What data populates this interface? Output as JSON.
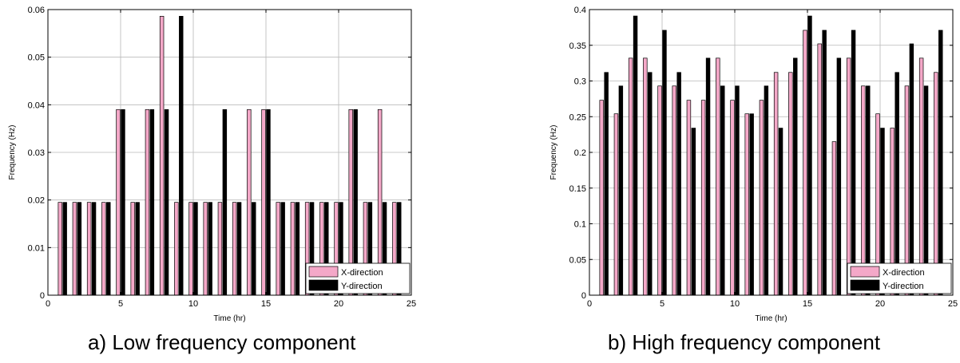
{
  "figure": {
    "captions": [
      "a)  Low frequency component",
      "b)  High frequency component"
    ]
  },
  "chart_data": [
    {
      "type": "bar",
      "title": "",
      "xlabel": "Time (hr)",
      "ylabel": "Frequency (Hz)",
      "xlim": [
        0,
        25
      ],
      "ylim": [
        0,
        0.06
      ],
      "xticks": [
        0,
        5,
        10,
        15,
        20,
        25
      ],
      "yticks": [
        0,
        0.01,
        0.02,
        0.03,
        0.04,
        0.05,
        0.06
      ],
      "ytick_labels": [
        "0",
        "0.01",
        "0.02",
        "0.03",
        "0.04",
        "0.05",
        "0.06"
      ],
      "xtick_labels": [
        "0",
        "5",
        "10",
        "15",
        "20",
        "25"
      ],
      "grid": true,
      "legend_position": "bottom-right",
      "x": [
        1,
        2,
        3,
        4,
        5,
        6,
        7,
        8,
        9,
        10,
        11,
        12,
        13,
        14,
        15,
        16,
        17,
        18,
        19,
        20,
        21,
        22,
        23,
        24
      ],
      "series": [
        {
          "name": "X-direction",
          "color": "#f4a8c8",
          "values": [
            0.0195,
            0.0195,
            0.0195,
            0.0195,
            0.039,
            0.0195,
            0.039,
            0.0586,
            0.0195,
            0.0195,
            0.0195,
            0.0195,
            0.0195,
            0.039,
            0.039,
            0.0195,
            0.0195,
            0.0195,
            0.0195,
            0.0195,
            0.039,
            0.0195,
            0.039,
            0.0195
          ]
        },
        {
          "name": "Y-direction",
          "color": "#000000",
          "values": [
            0.0195,
            0.0195,
            0.0195,
            0.0195,
            0.039,
            0.0195,
            0.039,
            0.039,
            0.0586,
            0.0195,
            0.0195,
            0.039,
            0.0195,
            0.0195,
            0.039,
            0.0195,
            0.0195,
            0.0195,
            0.0195,
            0.0195,
            0.039,
            0.0195,
            0.0195,
            0.0195
          ]
        }
      ]
    },
    {
      "type": "bar",
      "title": "",
      "xlabel": "Time (hr)",
      "ylabel": "Frequency (Hz)",
      "xlim": [
        0,
        25
      ],
      "ylim": [
        0,
        0.4
      ],
      "xticks": [
        0,
        5,
        10,
        15,
        20,
        25
      ],
      "yticks": [
        0,
        0.05,
        0.1,
        0.15,
        0.2,
        0.25,
        0.3,
        0.35,
        0.4
      ],
      "ytick_labels": [
        "0",
        "0.05",
        "0.1",
        "0.15",
        "0.2",
        "0.25",
        "0.3",
        "0.35",
        "0.4"
      ],
      "xtick_labels": [
        "0",
        "5",
        "10",
        "15",
        "20",
        "25"
      ],
      "grid": true,
      "legend_position": "bottom-right",
      "x": [
        1,
        2,
        3,
        4,
        5,
        6,
        7,
        8,
        9,
        10,
        11,
        12,
        13,
        14,
        15,
        16,
        17,
        18,
        19,
        20,
        21,
        22,
        23,
        24
      ],
      "series": [
        {
          "name": "X-direction",
          "color": "#f4a8c8",
          "values": [
            0.273,
            0.254,
            0.332,
            0.332,
            0.293,
            0.293,
            0.273,
            0.273,
            0.332,
            0.273,
            0.254,
            0.273,
            0.312,
            0.312,
            0.371,
            0.352,
            0.215,
            0.332,
            0.293,
            0.254,
            0.234,
            0.293,
            0.332,
            0.312
          ]
        },
        {
          "name": "Y-direction",
          "color": "#000000",
          "values": [
            0.312,
            0.293,
            0.391,
            0.312,
            0.371,
            0.312,
            0.234,
            0.332,
            0.293,
            0.293,
            0.254,
            0.293,
            0.234,
            0.332,
            0.391,
            0.371,
            0.332,
            0.371,
            0.293,
            0.234,
            0.312,
            0.352,
            0.293,
            0.371
          ]
        }
      ]
    }
  ]
}
